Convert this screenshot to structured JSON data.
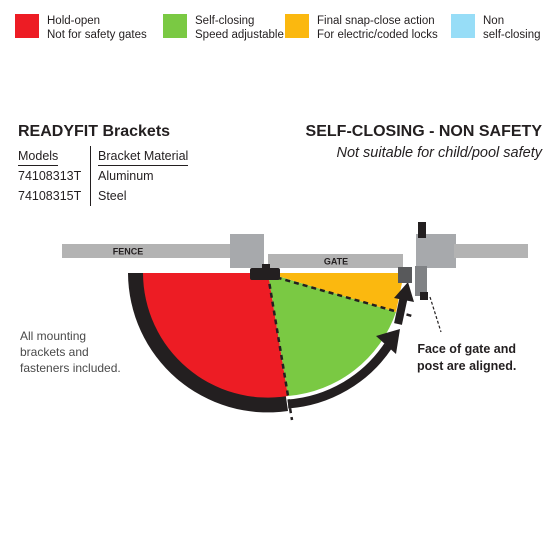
{
  "legend": [
    {
      "color": "#ed1c24",
      "line1": "Hold-open",
      "line2": "Not for safety gates"
    },
    {
      "color": "#7ac943",
      "line1": "Self-closing",
      "line2": "Speed adjustable"
    },
    {
      "color": "#fbb80f",
      "line1": "Final snap-close action",
      "line2": "For electric/coded locks"
    },
    {
      "color": "#97ddf7",
      "line1": "Non",
      "line2": "self-closing"
    }
  ],
  "product": {
    "title": "READYFIT Brackets",
    "headers": {
      "models": "Models",
      "material": "Bracket Material"
    },
    "rows": [
      {
        "model": "74108313T",
        "material": "Aluminum"
      },
      {
        "model": "74108315T",
        "material": "Steel"
      }
    ]
  },
  "mode": {
    "title": "SELF-CLOSING - NON SAFETY",
    "subtitle": "Not suitable for child/pool safety"
  },
  "diagram": {
    "fence_label": "FENCE",
    "gate_label": "GATE"
  },
  "notes": {
    "left": [
      "All mounting",
      "brackets and",
      "fasteners included."
    ],
    "right": [
      "Face of gate and",
      "post are aligned."
    ]
  }
}
